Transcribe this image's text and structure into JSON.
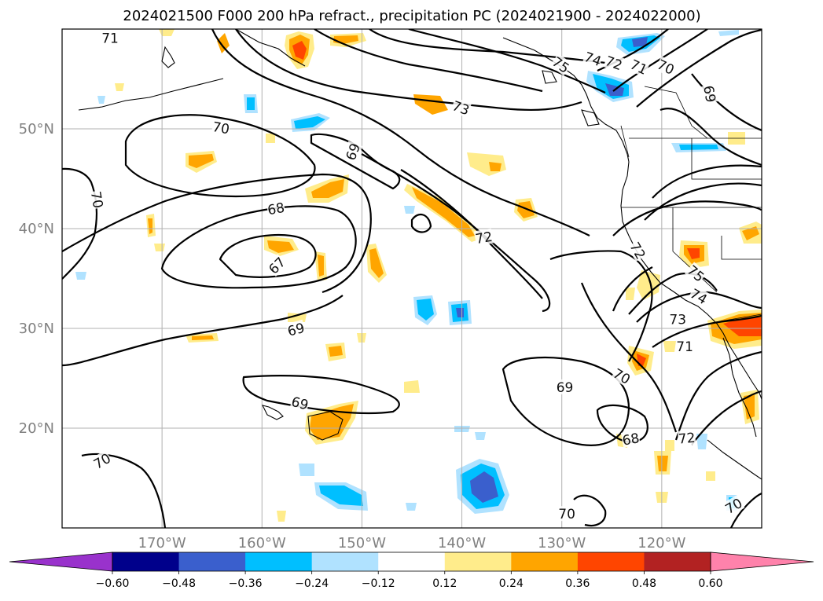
{
  "title": "2024021500 F000 200 hPa refract., precipitation PC (2024021900 - 2024022000)",
  "map": {
    "lon_range": [
      -180,
      -110
    ],
    "lat_range": [
      10,
      60
    ],
    "lat_ticks": [
      {
        "value": 50,
        "label": "50°N"
      },
      {
        "value": 40,
        "label": "40°N"
      },
      {
        "value": 30,
        "label": "30°N"
      },
      {
        "value": 20,
        "label": "20°N"
      }
    ],
    "lon_ticks": [
      {
        "value": -170,
        "label": "170°W"
      },
      {
        "value": -160,
        "label": "160°W"
      },
      {
        "value": -150,
        "label": "150°W"
      },
      {
        "value": -140,
        "label": "140°W"
      },
      {
        "value": -130,
        "label": "130°W"
      },
      {
        "value": -120,
        "label": "120°W"
      }
    ],
    "grid": true,
    "contour_labels": [
      {
        "text": "71",
        "lon": -175.2,
        "lat": 59.1
      },
      {
        "text": "70",
        "lon": -164.1,
        "lat": 50.1,
        "rot": 10
      },
      {
        "text": "69",
        "lon": -150.9,
        "lat": 47.7,
        "rot": -70
      },
      {
        "text": "70",
        "lon": -176.5,
        "lat": 42.9,
        "rot": 80
      },
      {
        "text": "68",
        "lon": -158.6,
        "lat": 42.0,
        "rot": -10
      },
      {
        "text": "67",
        "lon": -158.5,
        "lat": 36.3,
        "rot": -45
      },
      {
        "text": "69",
        "lon": -156.6,
        "lat": 29.9,
        "rot": -15
      },
      {
        "text": "73",
        "lon": -140.1,
        "lat": 52.1,
        "rot": 20
      },
      {
        "text": "72",
        "lon": -137.8,
        "lat": 39.1,
        "rot": -10
      },
      {
        "text": "69",
        "lon": -156.2,
        "lat": 22.5,
        "rot": 15
      },
      {
        "text": "70",
        "lon": -176.0,
        "lat": 16.7,
        "rot": -30
      },
      {
        "text": "69",
        "lon": -129.7,
        "lat": 24.1
      },
      {
        "text": "70",
        "lon": -124.0,
        "lat": 25.2,
        "rot": 30
      },
      {
        "text": "68",
        "lon": -123.1,
        "lat": 18.9,
        "rot": -10
      },
      {
        "text": "72",
        "lon": -117.5,
        "lat": 19.0,
        "rot": -5
      },
      {
        "text": "70",
        "lon": -129.5,
        "lat": 11.4
      },
      {
        "text": "70",
        "lon": -112.8,
        "lat": 12.2,
        "rot": -30
      },
      {
        "text": "71",
        "lon": -117.7,
        "lat": 28.2
      },
      {
        "text": "73",
        "lon": -118.4,
        "lat": 30.9
      },
      {
        "text": "74",
        "lon": -116.3,
        "lat": 33.2,
        "rot": 30
      },
      {
        "text": "75",
        "lon": -116.6,
        "lat": 35.5,
        "rot": 40
      },
      {
        "text": "72",
        "lon": -122.4,
        "lat": 37.8,
        "rot": 60
      },
      {
        "text": "75",
        "lon": -130.1,
        "lat": 56.4,
        "rot": 35
      },
      {
        "text": "74",
        "lon": -126.9,
        "lat": 57.0,
        "rot": 20
      },
      {
        "text": "72",
        "lon": -124.8,
        "lat": 56.6,
        "rot": 20
      },
      {
        "text": "71",
        "lon": -122.3,
        "lat": 56.2,
        "rot": 25
      },
      {
        "text": "70",
        "lon": -119.6,
        "lat": 56.2,
        "rot": 25
      },
      {
        "text": "69",
        "lon": -115.2,
        "lat": 53.5,
        "rot": 80
      }
    ]
  },
  "colorbar": {
    "colors": [
      "#9932cc",
      "#00008b",
      "#3a5fcd",
      "#00bfff",
      "#b0e2ff",
      "#ffffff",
      "#ffec8b",
      "#ffa500",
      "#ff4500",
      "#b22222",
      "#ff82ab"
    ],
    "levels": [
      -0.6,
      -0.48,
      -0.36,
      -0.24,
      -0.12,
      0.12,
      0.24,
      0.36,
      0.48,
      0.6
    ],
    "labels": [
      "−0.60",
      "−0.48",
      "−0.36",
      "−0.24",
      "−0.12",
      "0.12",
      "0.24",
      "0.36",
      "0.48",
      "0.60"
    ],
    "extend": "both"
  }
}
